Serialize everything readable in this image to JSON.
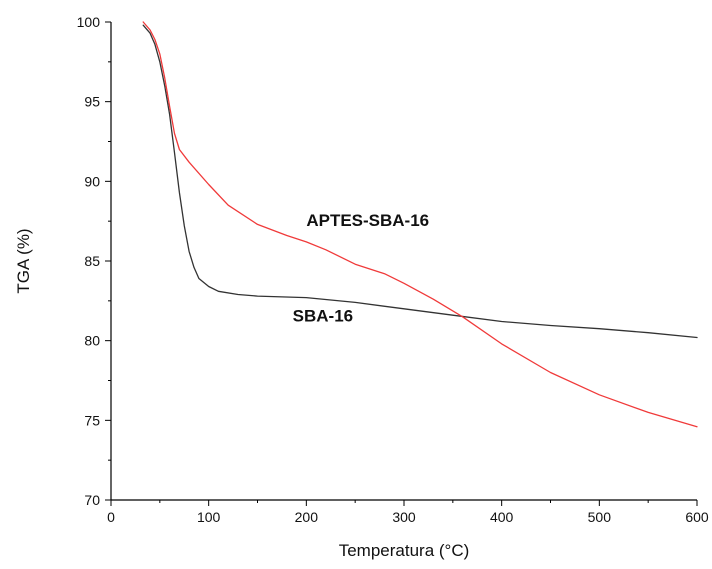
{
  "chart_data": {
    "type": "line",
    "title": "",
    "xlabel": "Temperatura (°C)",
    "ylabel": "TGA (%)",
    "xlim": [
      0,
      600
    ],
    "ylim": [
      70,
      100
    ],
    "x_ticks": [
      0,
      100,
      200,
      300,
      400,
      500,
      600
    ],
    "y_ticks": [
      70,
      75,
      80,
      85,
      90,
      95,
      100
    ],
    "grid": false,
    "series": [
      {
        "name": "SBA-16",
        "color": "#333333",
        "points": [
          [
            33,
            99.8
          ],
          [
            40,
            99.3
          ],
          [
            45,
            98.6
          ],
          [
            50,
            97.5
          ],
          [
            55,
            96.0
          ],
          [
            60,
            94.2
          ],
          [
            65,
            91.8
          ],
          [
            70,
            89.3
          ],
          [
            75,
            87.2
          ],
          [
            80,
            85.6
          ],
          [
            85,
            84.6
          ],
          [
            90,
            83.9
          ],
          [
            100,
            83.4
          ],
          [
            110,
            83.1
          ],
          [
            130,
            82.9
          ],
          [
            150,
            82.8
          ],
          [
            200,
            82.7
          ],
          [
            250,
            82.4
          ],
          [
            300,
            82.0
          ],
          [
            350,
            81.6
          ],
          [
            400,
            81.2
          ],
          [
            450,
            80.95
          ],
          [
            500,
            80.75
          ],
          [
            550,
            80.5
          ],
          [
            600,
            80.2
          ]
        ]
      },
      {
        "name": "APTES-SBA-16",
        "color": "#f03a3a",
        "points": [
          [
            33,
            100.0
          ],
          [
            40,
            99.5
          ],
          [
            45,
            98.9
          ],
          [
            50,
            98.0
          ],
          [
            55,
            96.5
          ],
          [
            60,
            94.7
          ],
          [
            65,
            93.0
          ],
          [
            70,
            92.0
          ],
          [
            80,
            91.2
          ],
          [
            100,
            89.8
          ],
          [
            120,
            88.5
          ],
          [
            150,
            87.3
          ],
          [
            180,
            86.6
          ],
          [
            200,
            86.2
          ],
          [
            220,
            85.7
          ],
          [
            250,
            84.8
          ],
          [
            280,
            84.2
          ],
          [
            300,
            83.6
          ],
          [
            330,
            82.6
          ],
          [
            360,
            81.5
          ],
          [
            400,
            79.8
          ],
          [
            450,
            78.0
          ],
          [
            500,
            76.6
          ],
          [
            550,
            75.5
          ],
          [
            600,
            74.6
          ]
        ]
      }
    ],
    "annotations": [
      {
        "text": "APTES-SBA-16",
        "series": "APTES-SBA-16",
        "x": 200,
        "y": 87.2
      },
      {
        "text": "SBA-16",
        "series": "SBA-16",
        "x": 186,
        "y": 81.2
      }
    ]
  }
}
